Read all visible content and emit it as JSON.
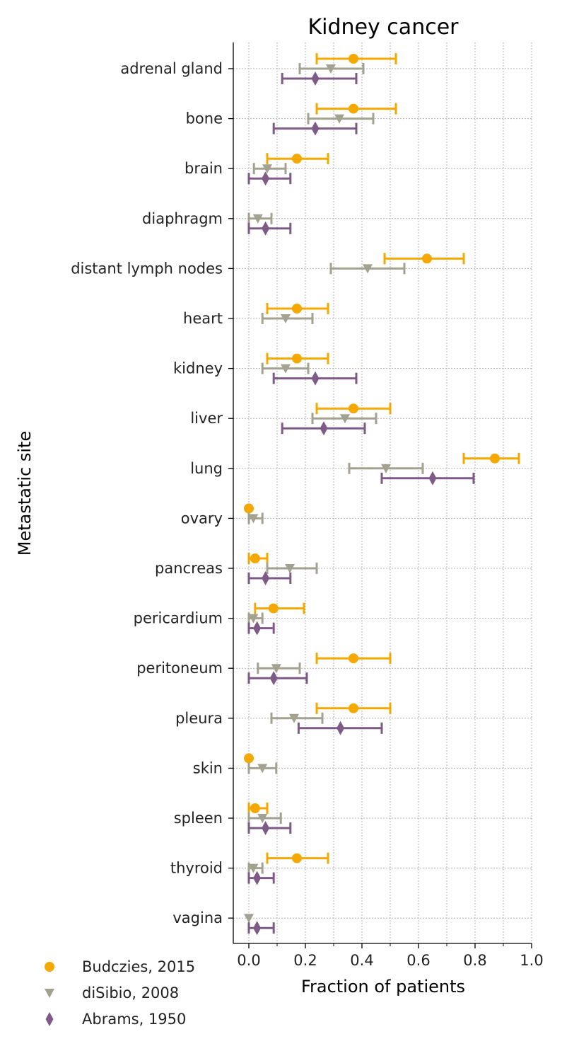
{
  "chart_data": {
    "type": "scatter",
    "title": "Kidney cancer",
    "xlabel": "Fraction of patients",
    "ylabel": "Metastatic site",
    "xlim": [
      -0.055,
      1.0
    ],
    "x_ticks": [
      "0.0",
      "0.2",
      "0.4",
      "0.6",
      "0.8",
      "1.0"
    ],
    "grid": true,
    "legend_position": "bottom-left",
    "categories": [
      "adrenal gland",
      "bone",
      "brain",
      "diaphragm",
      "distant lymph nodes",
      "heart",
      "kidney",
      "liver",
      "lung",
      "ovary",
      "pancreas",
      "pericardium",
      "peritoneum",
      "pleura",
      "skin",
      "spleen",
      "thyroid",
      "vagina"
    ],
    "series": [
      {
        "name": "Budczies, 2015",
        "color": "#F5A800",
        "marker": "circle",
        "points": [
          {
            "site": "adrenal gland",
            "value": 0.37,
            "low": 0.24,
            "high": 0.52
          },
          {
            "site": "bone",
            "value": 0.37,
            "low": 0.24,
            "high": 0.52
          },
          {
            "site": "brain",
            "value": 0.17,
            "low": 0.065,
            "high": 0.28
          },
          {
            "site": "distant lymph nodes",
            "value": 0.63,
            "low": 0.48,
            "high": 0.76
          },
          {
            "site": "heart",
            "value": 0.17,
            "low": 0.065,
            "high": 0.28
          },
          {
            "site": "kidney",
            "value": 0.17,
            "low": 0.065,
            "high": 0.28
          },
          {
            "site": "liver",
            "value": 0.37,
            "low": 0.24,
            "high": 0.5
          },
          {
            "site": "lung",
            "value": 0.87,
            "low": 0.76,
            "high": 0.955
          },
          {
            "site": "ovary",
            "value": 0.0,
            "low": 0.0,
            "high": 0.0
          },
          {
            "site": "pancreas",
            "value": 0.022,
            "low": 0.0,
            "high": 0.065
          },
          {
            "site": "pericardium",
            "value": 0.087,
            "low": 0.022,
            "high": 0.195
          },
          {
            "site": "peritoneum",
            "value": 0.37,
            "low": 0.24,
            "high": 0.5
          },
          {
            "site": "pleura",
            "value": 0.37,
            "low": 0.24,
            "high": 0.5
          },
          {
            "site": "skin",
            "value": 0.0,
            "low": 0.0,
            "high": 0.0
          },
          {
            "site": "spleen",
            "value": 0.022,
            "low": 0.0,
            "high": 0.065
          },
          {
            "site": "thyroid",
            "value": 0.17,
            "low": 0.065,
            "high": 0.28
          }
        ]
      },
      {
        "name": "diSibio, 2008",
        "color": "#A3A290",
        "marker": "triangle-down",
        "points": [
          {
            "site": "adrenal gland",
            "value": 0.29,
            "low": 0.18,
            "high": 0.405
          },
          {
            "site": "bone",
            "value": 0.32,
            "low": 0.21,
            "high": 0.44
          },
          {
            "site": "brain",
            "value": 0.065,
            "low": 0.018,
            "high": 0.13
          },
          {
            "site": "diaphragm",
            "value": 0.032,
            "low": 0.0,
            "high": 0.08
          },
          {
            "site": "distant lymph nodes",
            "value": 0.42,
            "low": 0.29,
            "high": 0.55
          },
          {
            "site": "heart",
            "value": 0.13,
            "low": 0.048,
            "high": 0.225
          },
          {
            "site": "kidney",
            "value": 0.13,
            "low": 0.048,
            "high": 0.21
          },
          {
            "site": "liver",
            "value": 0.34,
            "low": 0.225,
            "high": 0.45
          },
          {
            "site": "lung",
            "value": 0.485,
            "low": 0.355,
            "high": 0.615
          },
          {
            "site": "ovary",
            "value": 0.016,
            "low": 0.0,
            "high": 0.048
          },
          {
            "site": "pancreas",
            "value": 0.145,
            "low": 0.065,
            "high": 0.24
          },
          {
            "site": "pericardium",
            "value": 0.016,
            "low": 0.0,
            "high": 0.048
          },
          {
            "site": "peritoneum",
            "value": 0.097,
            "low": 0.032,
            "high": 0.18
          },
          {
            "site": "pleura",
            "value": 0.16,
            "low": 0.08,
            "high": 0.26
          },
          {
            "site": "skin",
            "value": 0.048,
            "low": 0.0,
            "high": 0.097
          },
          {
            "site": "spleen",
            "value": 0.048,
            "low": 0.0,
            "high": 0.113
          },
          {
            "site": "thyroid",
            "value": 0.016,
            "low": 0.0,
            "high": 0.048
          },
          {
            "site": "vagina",
            "value": 0.0,
            "low": 0.0,
            "high": 0.0
          }
        ]
      },
      {
        "name": "Abrams, 1950",
        "color": "#7E5A86",
        "marker": "diamond",
        "points": [
          {
            "site": "adrenal gland",
            "value": 0.235,
            "low": 0.118,
            "high": 0.38
          },
          {
            "site": "bone",
            "value": 0.235,
            "low": 0.088,
            "high": 0.38
          },
          {
            "site": "brain",
            "value": 0.059,
            "low": 0.0,
            "high": 0.147
          },
          {
            "site": "diaphragm",
            "value": 0.059,
            "low": 0.0,
            "high": 0.147
          },
          {
            "site": "kidney",
            "value": 0.235,
            "low": 0.088,
            "high": 0.38
          },
          {
            "site": "liver",
            "value": 0.265,
            "low": 0.118,
            "high": 0.41
          },
          {
            "site": "lung",
            "value": 0.65,
            "low": 0.47,
            "high": 0.795
          },
          {
            "site": "pancreas",
            "value": 0.059,
            "low": 0.0,
            "high": 0.147
          },
          {
            "site": "pericardium",
            "value": 0.029,
            "low": 0.0,
            "high": 0.088
          },
          {
            "site": "peritoneum",
            "value": 0.088,
            "low": 0.0,
            "high": 0.205
          },
          {
            "site": "pleura",
            "value": 0.324,
            "low": 0.176,
            "high": 0.47
          },
          {
            "site": "spleen",
            "value": 0.059,
            "low": 0.0,
            "high": 0.147
          },
          {
            "site": "thyroid",
            "value": 0.029,
            "low": 0.0,
            "high": 0.088
          },
          {
            "site": "vagina",
            "value": 0.029,
            "low": 0.0,
            "high": 0.088
          }
        ]
      }
    ]
  }
}
